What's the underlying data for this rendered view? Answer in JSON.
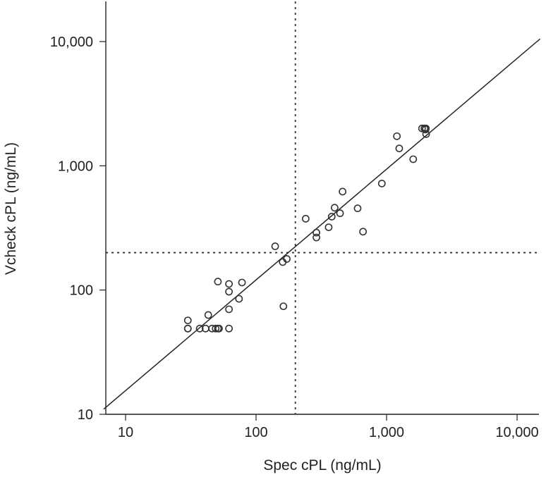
{
  "chart_data": {
    "type": "scatter",
    "title": "",
    "xlabel": "Spec cPL (ng/mL)",
    "ylabel": "Vcheck cPL (ng/mL)",
    "xscale": "log",
    "yscale": "log",
    "xlim": [
      6.8,
      15000
    ],
    "ylim": [
      10,
      21000
    ],
    "xticks": [
      10,
      100,
      1000,
      10000
    ],
    "xtick_labels": [
      "10",
      "100",
      "1,000",
      "10,000"
    ],
    "yticks": [
      10,
      100,
      1000,
      10000
    ],
    "ytick_labels": [
      "10",
      "100",
      "1,000",
      "10,000"
    ],
    "reference_lines": {
      "x": 200,
      "y": 200,
      "style": "dotted"
    },
    "fit_line": {
      "x1": 6.8,
      "y1": 11,
      "x2": 15000,
      "y2": 10500
    },
    "points": [
      {
        "x": 30,
        "y": 57
      },
      {
        "x": 30,
        "y": 49
      },
      {
        "x": 30,
        "y": 49
      },
      {
        "x": 37,
        "y": 49
      },
      {
        "x": 41,
        "y": 49
      },
      {
        "x": 43,
        "y": 63
      },
      {
        "x": 46,
        "y": 49
      },
      {
        "x": 49,
        "y": 49
      },
      {
        "x": 51,
        "y": 49
      },
      {
        "x": 52,
        "y": 49
      },
      {
        "x": 51,
        "y": 117
      },
      {
        "x": 62,
        "y": 112
      },
      {
        "x": 62,
        "y": 97
      },
      {
        "x": 62,
        "y": 70
      },
      {
        "x": 62,
        "y": 49
      },
      {
        "x": 74,
        "y": 85
      },
      {
        "x": 78,
        "y": 115
      },
      {
        "x": 140,
        "y": 225
      },
      {
        "x": 160,
        "y": 168
      },
      {
        "x": 172,
        "y": 178
      },
      {
        "x": 162,
        "y": 74
      },
      {
        "x": 240,
        "y": 375
      },
      {
        "x": 290,
        "y": 265
      },
      {
        "x": 290,
        "y": 290
      },
      {
        "x": 360,
        "y": 320
      },
      {
        "x": 380,
        "y": 390
      },
      {
        "x": 400,
        "y": 460
      },
      {
        "x": 440,
        "y": 415
      },
      {
        "x": 460,
        "y": 620
      },
      {
        "x": 600,
        "y": 455
      },
      {
        "x": 660,
        "y": 295
      },
      {
        "x": 920,
        "y": 720
      },
      {
        "x": 1200,
        "y": 1730
      },
      {
        "x": 1250,
        "y": 1380
      },
      {
        "x": 1600,
        "y": 1130
      },
      {
        "x": 1870,
        "y": 2000
      },
      {
        "x": 1950,
        "y": 2000
      },
      {
        "x": 1990,
        "y": 1960
      },
      {
        "x": 2000,
        "y": 2000
      },
      {
        "x": 2010,
        "y": 1800
      }
    ]
  }
}
